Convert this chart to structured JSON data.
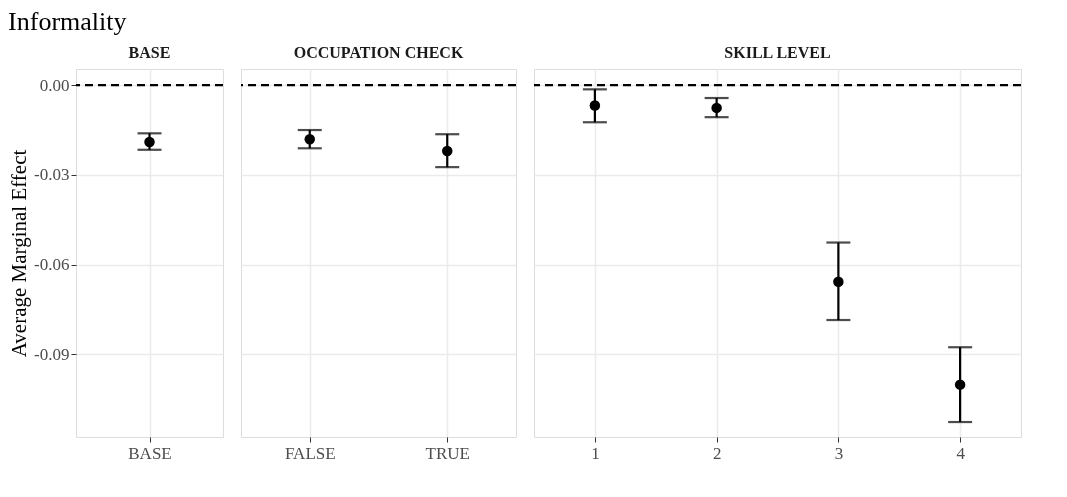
{
  "chart_data": [
    {
      "type": "scatter",
      "title": "Informality",
      "subtitle": "BASE",
      "ylabel": "Average Marginal Effect",
      "categories": [
        "BASE"
      ],
      "values": [
        -0.019
      ],
      "errors": [
        [
          -0.0216,
          -0.0161
        ]
      ],
      "color": "#000000",
      "marker": "circle",
      "ylim": [
        -0.1176,
        0.0054
      ],
      "yticks": [
        {
          "value": 0,
          "label": "0.00"
        },
        {
          "value": -0.03,
          "label": "-0.03"
        },
        {
          "value": -0.06,
          "label": "-0.06"
        },
        {
          "value": -0.09,
          "label": "-0.09"
        }
      ],
      "grid": true,
      "ref_lines": [
        {
          "axis": "y",
          "value": 0,
          "line_style": "dashed",
          "color": "#000000"
        }
      ]
    },
    {
      "type": "scatter",
      "subtitle": "OCCUPATION CHECK",
      "categories": [
        "FALSE",
        "TRUE"
      ],
      "values": [
        -0.0181,
        -0.022
      ],
      "errors": [
        [
          -0.0211,
          -0.015
        ],
        [
          -0.0274,
          -0.0164
        ]
      ],
      "color": "#000000",
      "marker": "circle",
      "ylim": [
        -0.1176,
        0.0054
      ],
      "yticks": [
        0,
        -0.03,
        -0.06,
        -0.09
      ],
      "grid": true,
      "tick_labels": "x",
      "ref_lines": [
        {
          "axis": "y",
          "value": 0,
          "line_style": "dashed",
          "color": "#000000"
        }
      ]
    },
    {
      "type": "scatter",
      "subtitle": "SKILL LEVEL",
      "categories": [
        "1",
        "2",
        "3",
        "4"
      ],
      "values": [
        -0.0068,
        -0.0076,
        -0.0657,
        -0.1001
      ],
      "errors": [
        [
          -0.0124,
          -0.0014
        ],
        [
          -0.0107,
          -0.0043
        ],
        [
          -0.0785,
          -0.0526
        ],
        [
          -0.1126,
          -0.0876
        ]
      ],
      "color": "#000000",
      "marker": "circle",
      "ylim": [
        -0.1176,
        0.0054
      ],
      "yticks": [
        0,
        -0.03,
        -0.06,
        -0.09
      ],
      "grid": true,
      "tick_labels": "x",
      "ref_lines": [
        {
          "axis": "y",
          "value": 0,
          "line_style": "dashed",
          "color": "#000000"
        }
      ]
    }
  ]
}
